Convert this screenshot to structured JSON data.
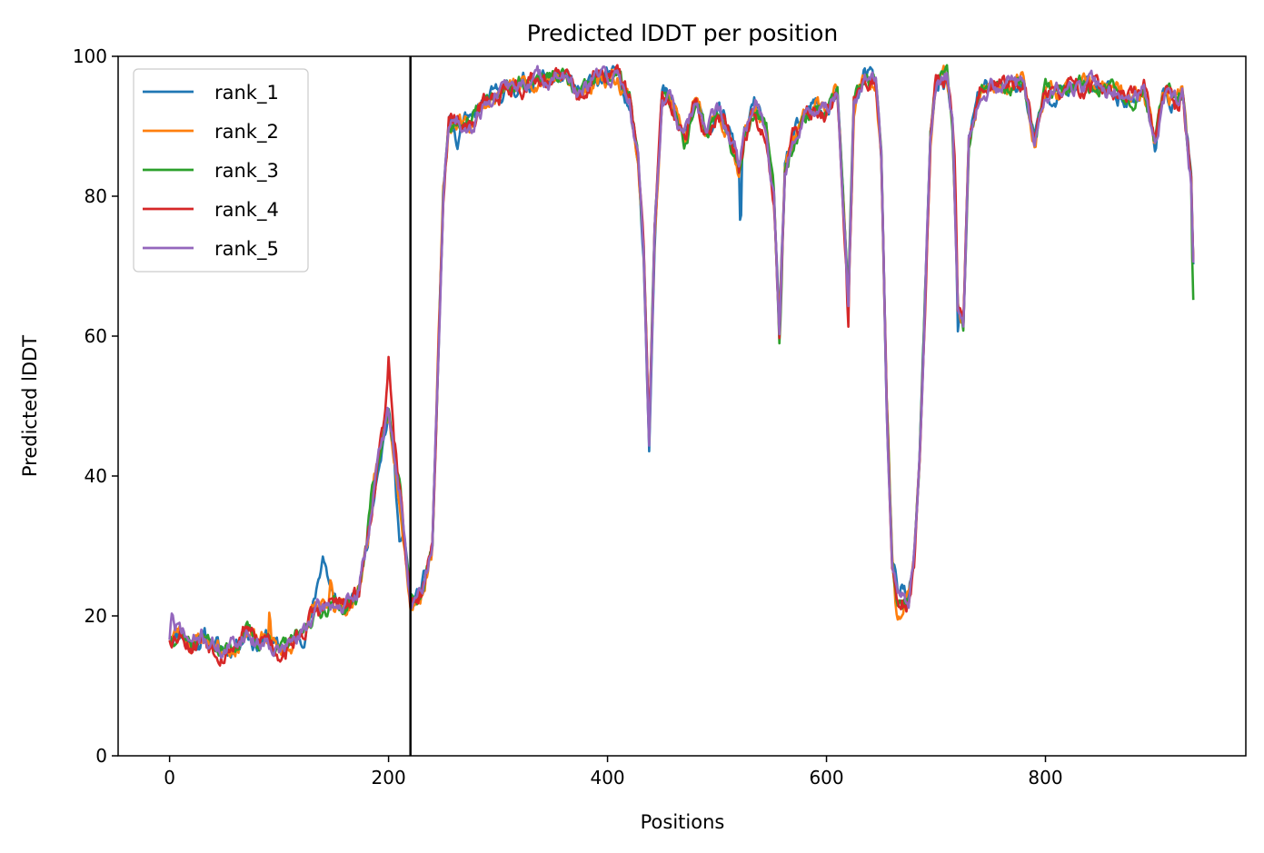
{
  "chart_data": {
    "type": "line",
    "title": "Predicted lDDT per position",
    "xlabel": "Positions",
    "ylabel": "Predicted lDDT",
    "xlim": [
      -47,
      983
    ],
    "ylim": [
      0,
      100
    ],
    "xticks": [
      0,
      200,
      400,
      600,
      800
    ],
    "yticks": [
      0,
      20,
      40,
      60,
      80,
      100
    ],
    "grid": false,
    "legend_position": "top-left",
    "vline_x": 220,
    "vline_color": "#000000",
    "breakpoints": [
      [
        0,
        17
      ],
      [
        10,
        18
      ],
      [
        20,
        16
      ],
      [
        30,
        17
      ],
      [
        40,
        16
      ],
      [
        50,
        15
      ],
      [
        60,
        16
      ],
      [
        70,
        18
      ],
      [
        80,
        16
      ],
      [
        90,
        17
      ],
      [
        100,
        15
      ],
      [
        110,
        16
      ],
      [
        120,
        17
      ],
      [
        130,
        20
      ],
      [
        140,
        21
      ],
      [
        150,
        22
      ],
      [
        160,
        21
      ],
      [
        170,
        22
      ],
      [
        180,
        30
      ],
      [
        190,
        42
      ],
      [
        200,
        49
      ],
      [
        210,
        38
      ],
      [
        215,
        30
      ],
      [
        220,
        22
      ],
      [
        230,
        23
      ],
      [
        240,
        30
      ],
      [
        245,
        55
      ],
      [
        250,
        80
      ],
      [
        255,
        90
      ],
      [
        265,
        91
      ],
      [
        275,
        90
      ],
      [
        285,
        93
      ],
      [
        295,
        94
      ],
      [
        305,
        95
      ],
      [
        320,
        96
      ],
      [
        340,
        97
      ],
      [
        360,
        97
      ],
      [
        375,
        94
      ],
      [
        390,
        97
      ],
      [
        410,
        97
      ],
      [
        420,
        94
      ],
      [
        428,
        85
      ],
      [
        433,
        72
      ],
      [
        438,
        45
      ],
      [
        443,
        75
      ],
      [
        450,
        95
      ],
      [
        460,
        93
      ],
      [
        470,
        88
      ],
      [
        480,
        93
      ],
      [
        490,
        89
      ],
      [
        500,
        92
      ],
      [
        510,
        90
      ],
      [
        520,
        84
      ],
      [
        525,
        89
      ],
      [
        535,
        93
      ],
      [
        545,
        89
      ],
      [
        552,
        80
      ],
      [
        557,
        60
      ],
      [
        562,
        84
      ],
      [
        570,
        88
      ],
      [
        580,
        91
      ],
      [
        590,
        93
      ],
      [
        600,
        92
      ],
      [
        610,
        95
      ],
      [
        615,
        80
      ],
      [
        620,
        65
      ],
      [
        625,
        93
      ],
      [
        635,
        97
      ],
      [
        645,
        96
      ],
      [
        650,
        85
      ],
      [
        655,
        50
      ],
      [
        660,
        28
      ],
      [
        665,
        22
      ],
      [
        670,
        22
      ],
      [
        675,
        22
      ],
      [
        680,
        28
      ],
      [
        685,
        42
      ],
      [
        690,
        65
      ],
      [
        695,
        88
      ],
      [
        700,
        96
      ],
      [
        710,
        97
      ],
      [
        715,
        90
      ],
      [
        720,
        65
      ],
      [
        725,
        62
      ],
      [
        730,
        88
      ],
      [
        740,
        95
      ],
      [
        750,
        96
      ],
      [
        760,
        96
      ],
      [
        780,
        96
      ],
      [
        790,
        88
      ],
      [
        800,
        95
      ],
      [
        820,
        95
      ],
      [
        840,
        96
      ],
      [
        860,
        95
      ],
      [
        880,
        94
      ],
      [
        890,
        95
      ],
      [
        900,
        88
      ],
      [
        905,
        92
      ],
      [
        910,
        95
      ],
      [
        920,
        93
      ],
      [
        925,
        95
      ],
      [
        930,
        87
      ],
      [
        933,
        82
      ],
      [
        935,
        70
      ]
    ],
    "series": [
      {
        "name": "rank_1",
        "color": "#1f77b4",
        "seed": 11,
        "noise": 1.6,
        "dips": [
          [
            130,
            150,
            8
          ],
          [
            205,
            215,
            -7
          ],
          [
            258,
            268,
            -4
          ],
          [
            660,
            675,
            3
          ],
          [
            718,
            722,
            -5
          ],
          [
            520,
            523,
            -12
          ]
        ]
      },
      {
        "name": "rank_2",
        "color": "#ff7f0e",
        "seed": 23,
        "noise": 1.5,
        "dips": [
          [
            145,
            150,
            5
          ],
          [
            90,
            93,
            5
          ],
          [
            660,
            670,
            -3
          ]
        ]
      },
      {
        "name": "rank_3",
        "color": "#2ca02c",
        "seed": 37,
        "noise": 1.4,
        "dips": [
          [
            180,
            190,
            3
          ],
          [
            557,
            560,
            -3
          ],
          [
            933,
            936,
            -8
          ]
        ]
      },
      {
        "name": "rank_4",
        "color": "#d62728",
        "seed": 53,
        "noise": 1.7,
        "dips": [
          [
            195,
            205,
            8
          ],
          [
            618,
            621,
            -5
          ],
          [
            715,
            720,
            8
          ]
        ]
      },
      {
        "name": "rank_5",
        "color": "#9467bd",
        "seed": 71,
        "noise": 1.5,
        "dips": [
          [
            0,
            5,
            4
          ]
        ]
      }
    ]
  }
}
